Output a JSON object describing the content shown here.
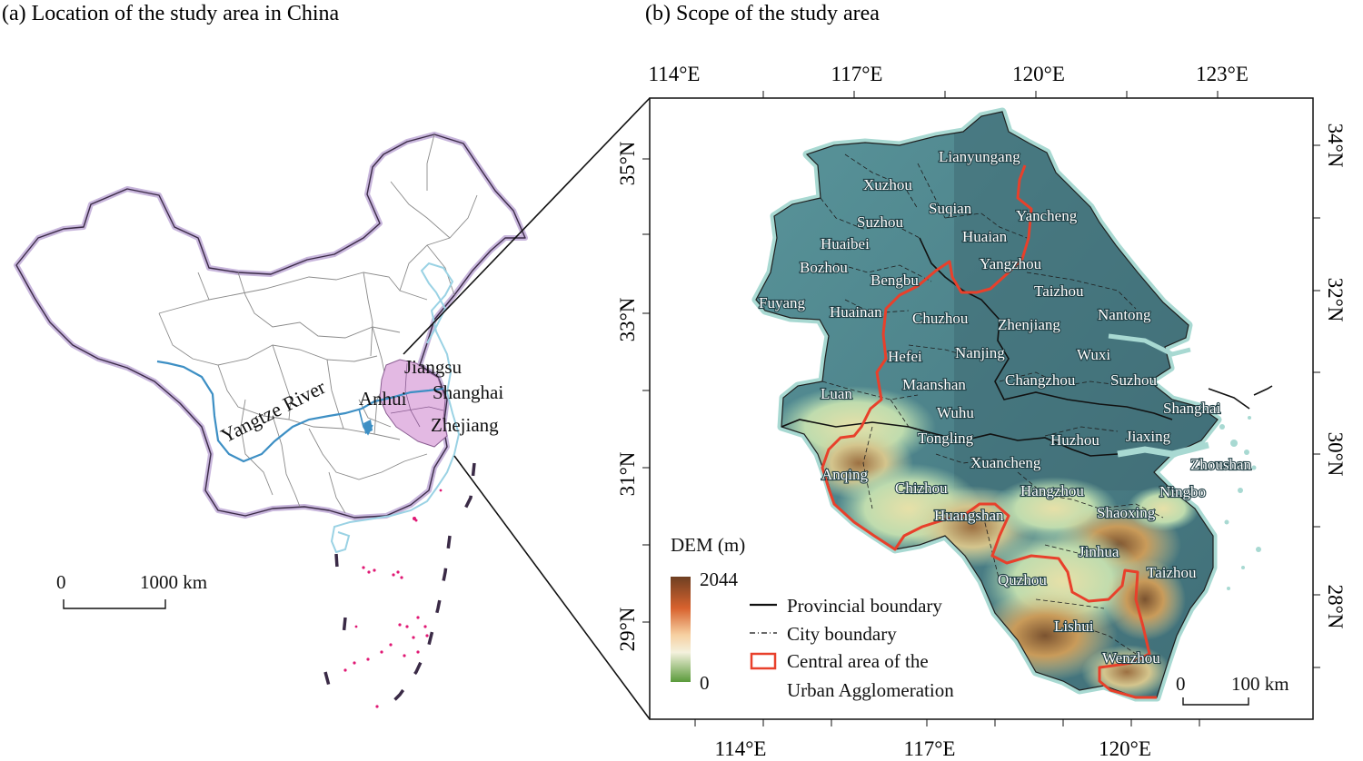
{
  "panel_a": {
    "title": "(a) Location of the study area in China",
    "labels": {
      "river": "Yangtze River",
      "jiangsu": "Jiangsu",
      "anhui": "Anhui",
      "shanghai": "Shanghai",
      "zhejiang": "Zhejiang"
    },
    "scalebar": {
      "zero": "0",
      "distance": "1000 km"
    },
    "colors": {
      "study_area": "#e3b9e3",
      "boundary_halo": "#c8b6dc",
      "river": "#3d8fc4",
      "coast": "#9ad2e4",
      "islands": "#e01874"
    }
  },
  "panel_b": {
    "title": "(b) Scope of the study area",
    "top_lon": [
      "114°E",
      "117°E",
      "120°E",
      "123°E"
    ],
    "bottom_lon": [
      "114°E",
      "117°E",
      "120°E"
    ],
    "left_lat": [
      "35°N",
      "33°N",
      "31°N",
      "29°N"
    ],
    "right_lat": [
      "34°N",
      "32°N",
      "30°N",
      "28°N"
    ],
    "cities": [
      "Lianyungang",
      "Xuzhou",
      "Suqian",
      "Yancheng",
      "Suzhou",
      "Huaian",
      "Huaibei",
      "Yangzhou",
      "Bozhou",
      "Bengbu",
      "Taizhou",
      "Fuyang",
      "Huainan",
      "Chuzhou",
      "Zhenjiang",
      "Nantong",
      "Hefei",
      "Nanjing",
      "Wuxi",
      "Maanshan",
      "Changzhou",
      "Suzhou",
      "Luan",
      "Shanghai",
      "Wuhu",
      "Tongling",
      "Huzhou",
      "Jiaxing",
      "Xuancheng",
      "Zhoushan",
      "Anqing",
      "Chizhou",
      "Hangzhou",
      "Ningbo",
      "Huangshan",
      "Shaoxing",
      "Jinhua",
      "Taizhou",
      "Quzhou",
      "Lishui",
      "Wenzhou"
    ],
    "legend": {
      "dem_title": "DEM (m)",
      "dem_max": "2044",
      "dem_min": "0",
      "provincial": "Provincial boundary",
      "city": "City boundary",
      "central_line1": "Central area of the",
      "central_line2": "Urban Agglomeration"
    },
    "scalebar": {
      "zero": "0",
      "distance": "100 km"
    },
    "colors": {
      "plain": "#4d8d96",
      "plain_dark": "#3e6e78",
      "sea_halo": "#a8d9d2",
      "central_boundary": "#e8402b",
      "highland_light": "#d8e6b8",
      "highland_mid": "#c79a55",
      "highland_dark": "#7a5434"
    }
  }
}
